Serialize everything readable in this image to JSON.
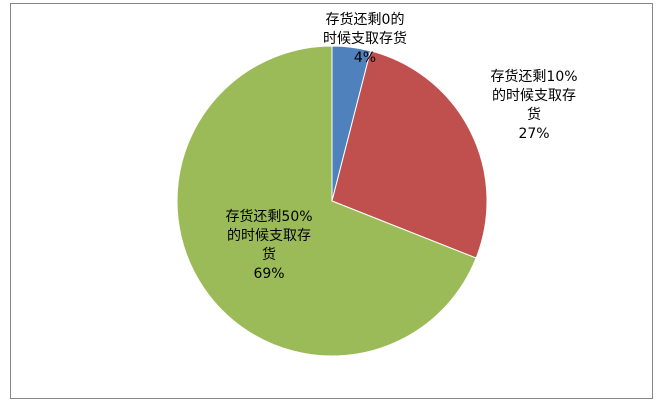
{
  "chart_data": {
    "type": "pie",
    "title": "",
    "legend": "none",
    "slices": [
      {
        "category": "存货还剩0的时候支取存货",
        "value": 4,
        "label_lines": [
          "存货还剩0的",
          "时候支取存货",
          "4%"
        ],
        "color": "#4F81BD"
      },
      {
        "category": "存货还剩10%的时候支取存货",
        "value": 27,
        "label_lines": [
          "存货还剩10%",
          "的时候支取存",
          "货",
          "27%"
        ],
        "color": "#C0504D"
      },
      {
        "category": "存货还剩50%的时候支取存货",
        "value": 69,
        "label_lines": [
          "存货还剩50%",
          "的时候支取存",
          "货",
          "69%"
        ],
        "color": "#9BBB59"
      }
    ]
  }
}
